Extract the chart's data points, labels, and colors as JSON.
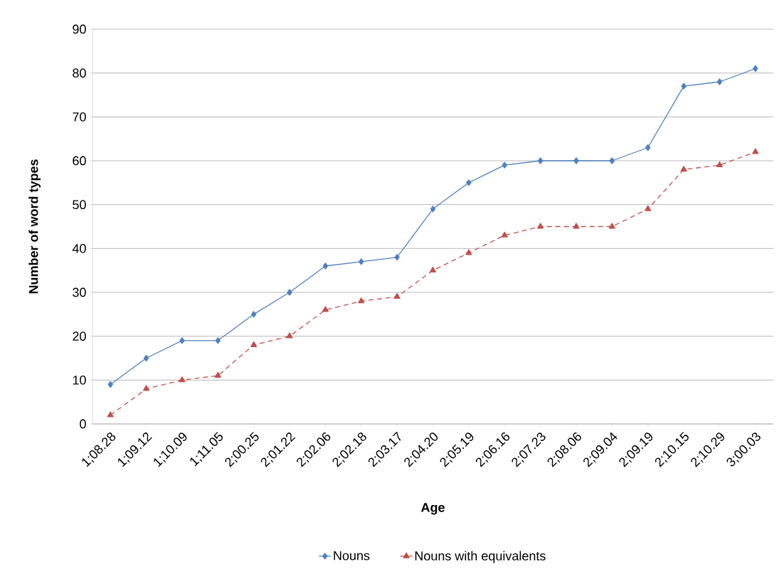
{
  "chart_data": {
    "type": "line",
    "xlabel": "Age",
    "ylabel": "Number of word types",
    "categories": [
      "1;08.28",
      "1;09.12",
      "1;10.09",
      "1;11.05",
      "2;00.25",
      "2;01.22",
      "2;02.06",
      "2;02.18",
      "2;03.17",
      "2;04.20",
      "2;05.19",
      "2;06.16",
      "2;07.23",
      "2;08.06",
      "2;09.04",
      "2;09.19",
      "2;10.15",
      "2;10.29",
      "3;00.03"
    ],
    "series": [
      {
        "name": "Nouns",
        "color": "#4f81bd",
        "marker": "diamond",
        "line_style": "solid",
        "values": [
          9,
          15,
          19,
          19,
          25,
          30,
          36,
          37,
          38,
          49,
          55,
          59,
          60,
          60,
          60,
          63,
          77,
          78,
          81
        ]
      },
      {
        "name": "Nouns with equivalents",
        "color": "#c0504d",
        "marker": "triangle",
        "line_style": "dashed",
        "values": [
          2,
          8,
          10,
          11,
          18,
          20,
          26,
          28,
          29,
          35,
          39,
          43,
          45,
          45,
          45,
          49,
          58,
          59,
          62
        ]
      }
    ],
    "ylim": [
      0,
      90
    ],
    "yticks": [
      0,
      10,
      20,
      30,
      40,
      50,
      60,
      70,
      80,
      90
    ],
    "grid": "y",
    "legend": "bottom"
  }
}
